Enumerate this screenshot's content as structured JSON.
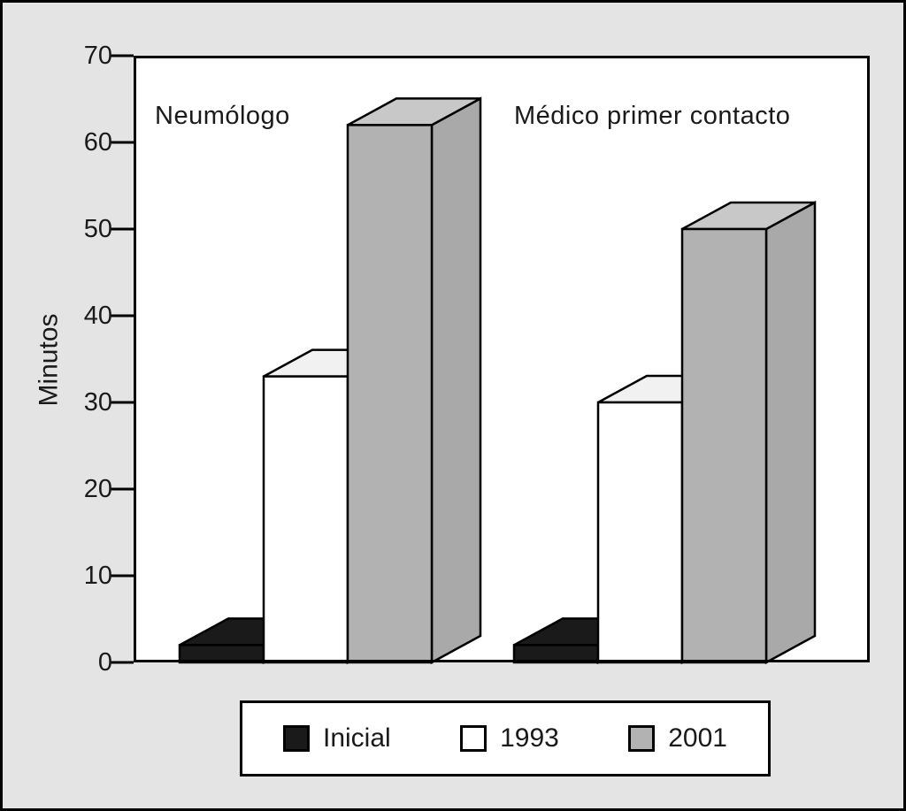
{
  "chart_data": {
    "type": "bar",
    "style": "3d-columns",
    "title": "",
    "xlabel": "",
    "ylabel": "Minutos",
    "ylim": [
      0,
      70
    ],
    "yticks": [
      0,
      10,
      20,
      30,
      40,
      50,
      60,
      70
    ],
    "grid": false,
    "groups": [
      "Neumólogo",
      "Médico primer contacto"
    ],
    "series": [
      {
        "name": "Inicial",
        "values": [
          2,
          2
        ],
        "front": "#1a1a1a",
        "top": "#1a1a1a",
        "side": "#1a1a1a"
      },
      {
        "name": "1993",
        "values": [
          33,
          30
        ],
        "front": "#ffffff",
        "top": "#f1f1f1",
        "side": "#e6e6e6"
      },
      {
        "name": "2001",
        "values": [
          62,
          50
        ],
        "front": "#b2b2b2",
        "top": "#c8c8c8",
        "side": "#a9a9a9"
      }
    ],
    "legend": {
      "position": "bottom",
      "labels": [
        "Inicial",
        "1993",
        "2001"
      ]
    },
    "background": "#e4e4e4",
    "plot_background": "#ffffff",
    "outline_color": "#000000"
  }
}
